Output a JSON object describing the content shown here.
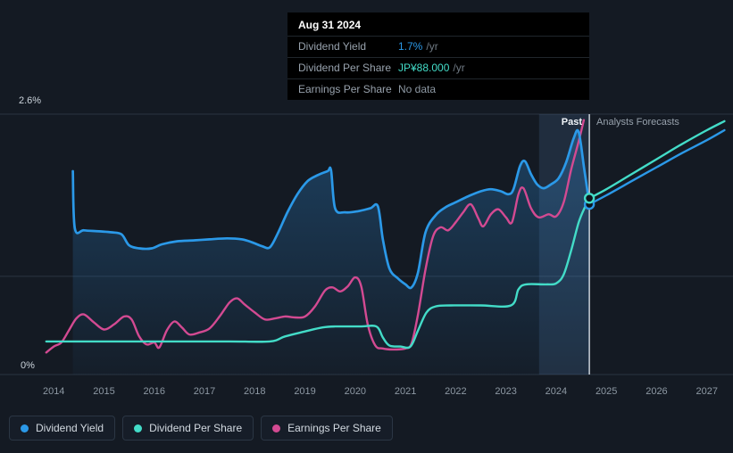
{
  "colors": {
    "background": "#141a23",
    "dividend_yield": "#2b99e8",
    "dividend_per_share": "#43dcc8",
    "earnings_per_share": "#d34a92",
    "area_fill": "#2b7fc4",
    "band": "#6aa6e0",
    "grid": "#2a3441",
    "divider": "#e2e9f0",
    "marker_fill": "#0e141d",
    "muted": "#8d98a3"
  },
  "tooltip": {
    "title": "Aug 31 2024",
    "rows": [
      {
        "label": "Dividend Yield",
        "value": "1.7%",
        "suffix": "/yr",
        "color_key": "dividend_yield"
      },
      {
        "label": "Dividend Per Share",
        "value": "JP¥88.000",
        "suffix": "/yr",
        "color_key": "dividend_per_share"
      },
      {
        "label": "Earnings Per Share",
        "value": "No data",
        "suffix": "",
        "color_key": "muted"
      }
    ]
  },
  "annotations": {
    "past_label": "Past",
    "forecast_label": "Analysts Forecasts"
  },
  "axis": {
    "y_top_label": "2.6%",
    "y_bottom_label": "0%"
  },
  "legend": [
    {
      "key": "dividend-yield",
      "label": "Dividend Yield",
      "color_key": "dividend_yield"
    },
    {
      "key": "dividend-per-share",
      "label": "Dividend Per Share",
      "color_key": "dividend_per_share"
    },
    {
      "key": "earnings-per-share",
      "label": "Earnings Per Share",
      "color_key": "earnings_per_share"
    }
  ],
  "chart_data": {
    "type": "line",
    "x_ticks": [
      2014,
      2015,
      2016,
      2017,
      2018,
      2019,
      2020,
      2021,
      2022,
      2023,
      2024,
      2025,
      2026,
      2027
    ],
    "xlim": [
      2012.93,
      2027.52
    ],
    "ylim": [
      0,
      2.6
    ],
    "y_unit": "%",
    "y_axis_tick_labels": [
      "0%",
      "2.6%"
    ],
    "gridlines_pct": [
      2.6,
      0.98,
      0
    ],
    "divider_x": 2024.66,
    "highlight_band": [
      2023.66,
      2024.66
    ],
    "legend_position": "bottom-left",
    "series": [
      {
        "key": "dividend-yield",
        "name": "Dividend Yield",
        "color_key": "dividend_yield",
        "area": true,
        "marker": [
          2024.66,
          1.7
        ],
        "past": [
          [
            2014.38,
            2.03
          ],
          [
            2014.42,
            1.46
          ],
          [
            2014.6,
            1.44
          ],
          [
            2014.9,
            1.43
          ],
          [
            2015.15,
            1.42
          ],
          [
            2015.35,
            1.4
          ],
          [
            2015.5,
            1.29
          ],
          [
            2015.7,
            1.26
          ],
          [
            2015.95,
            1.26
          ],
          [
            2016.15,
            1.3
          ],
          [
            2016.45,
            1.33
          ],
          [
            2016.8,
            1.34
          ],
          [
            2017.1,
            1.35
          ],
          [
            2017.45,
            1.36
          ],
          [
            2017.75,
            1.35
          ],
          [
            2017.95,
            1.32
          ],
          [
            2018.15,
            1.28
          ],
          [
            2018.3,
            1.27
          ],
          [
            2018.45,
            1.4
          ],
          [
            2018.65,
            1.62
          ],
          [
            2018.85,
            1.8
          ],
          [
            2019.05,
            1.93
          ],
          [
            2019.25,
            1.99
          ],
          [
            2019.45,
            2.03
          ],
          [
            2019.52,
            2.04
          ],
          [
            2019.6,
            1.66
          ],
          [
            2019.8,
            1.62
          ],
          [
            2020.05,
            1.63
          ],
          [
            2020.3,
            1.66
          ],
          [
            2020.45,
            1.68
          ],
          [
            2020.55,
            1.35
          ],
          [
            2020.68,
            1.06
          ],
          [
            2020.85,
            0.96
          ],
          [
            2021.0,
            0.9
          ],
          [
            2021.12,
            0.87
          ],
          [
            2021.25,
            1.02
          ],
          [
            2021.4,
            1.42
          ],
          [
            2021.6,
            1.59
          ],
          [
            2021.8,
            1.67
          ],
          [
            2022.0,
            1.72
          ],
          [
            2022.25,
            1.78
          ],
          [
            2022.5,
            1.83
          ],
          [
            2022.7,
            1.85
          ],
          [
            2022.9,
            1.83
          ],
          [
            2023.05,
            1.8
          ],
          [
            2023.15,
            1.85
          ],
          [
            2023.28,
            2.08
          ],
          [
            2023.38,
            2.13
          ],
          [
            2023.5,
            2.0
          ],
          [
            2023.62,
            1.9
          ],
          [
            2023.75,
            1.86
          ],
          [
            2023.9,
            1.9
          ],
          [
            2024.05,
            1.96
          ],
          [
            2024.2,
            2.12
          ],
          [
            2024.35,
            2.36
          ],
          [
            2024.45,
            2.42
          ],
          [
            2024.56,
            2.05
          ],
          [
            2024.66,
            1.7
          ]
        ],
        "forecast": [
          [
            2024.66,
            1.7
          ],
          [
            2025.0,
            1.79
          ],
          [
            2025.5,
            1.93
          ],
          [
            2026.0,
            2.07
          ],
          [
            2026.5,
            2.21
          ],
          [
            2027.0,
            2.34
          ],
          [
            2027.35,
            2.44
          ]
        ]
      },
      {
        "key": "dividend-per-share",
        "name": "Dividend Per Share",
        "color_key": "dividend_per_share",
        "area": false,
        "marker": [
          2024.66,
          1.76
        ],
        "past": [
          [
            2013.85,
            0.33
          ],
          [
            2014.5,
            0.33
          ],
          [
            2015.5,
            0.33
          ],
          [
            2016.5,
            0.33
          ],
          [
            2017.5,
            0.33
          ],
          [
            2018.3,
            0.33
          ],
          [
            2018.6,
            0.38
          ],
          [
            2019.0,
            0.43
          ],
          [
            2019.35,
            0.47
          ],
          [
            2019.6,
            0.48
          ],
          [
            2020.1,
            0.48
          ],
          [
            2020.42,
            0.48
          ],
          [
            2020.55,
            0.37
          ],
          [
            2020.68,
            0.29
          ],
          [
            2020.9,
            0.28
          ],
          [
            2021.1,
            0.28
          ],
          [
            2021.25,
            0.44
          ],
          [
            2021.42,
            0.62
          ],
          [
            2021.6,
            0.68
          ],
          [
            2021.9,
            0.69
          ],
          [
            2022.5,
            0.69
          ],
          [
            2023.1,
            0.69
          ],
          [
            2023.25,
            0.85
          ],
          [
            2023.4,
            0.9
          ],
          [
            2023.8,
            0.9
          ],
          [
            2024.0,
            0.91
          ],
          [
            2024.15,
            1.0
          ],
          [
            2024.3,
            1.24
          ],
          [
            2024.45,
            1.52
          ],
          [
            2024.58,
            1.68
          ],
          [
            2024.66,
            1.76
          ]
        ],
        "forecast": [
          [
            2024.66,
            1.76
          ],
          [
            2025.0,
            1.85
          ],
          [
            2025.5,
            2.0
          ],
          [
            2026.0,
            2.15
          ],
          [
            2026.5,
            2.3
          ],
          [
            2027.0,
            2.44
          ],
          [
            2027.35,
            2.53
          ]
        ]
      },
      {
        "key": "earnings-per-share",
        "name": "Earnings Per Share",
        "color_key": "earnings_per_share",
        "area": false,
        "past": [
          [
            2013.85,
            0.22
          ],
          [
            2014.0,
            0.28
          ],
          [
            2014.15,
            0.32
          ],
          [
            2014.3,
            0.44
          ],
          [
            2014.45,
            0.56
          ],
          [
            2014.6,
            0.6
          ],
          [
            2014.8,
            0.52
          ],
          [
            2015.0,
            0.45
          ],
          [
            2015.2,
            0.5
          ],
          [
            2015.4,
            0.58
          ],
          [
            2015.55,
            0.55
          ],
          [
            2015.7,
            0.38
          ],
          [
            2015.85,
            0.3
          ],
          [
            2016.0,
            0.32
          ],
          [
            2016.1,
            0.27
          ],
          [
            2016.25,
            0.44
          ],
          [
            2016.4,
            0.53
          ],
          [
            2016.55,
            0.47
          ],
          [
            2016.7,
            0.4
          ],
          [
            2016.9,
            0.42
          ],
          [
            2017.1,
            0.46
          ],
          [
            2017.3,
            0.58
          ],
          [
            2017.5,
            0.72
          ],
          [
            2017.65,
            0.76
          ],
          [
            2017.8,
            0.7
          ],
          [
            2018.0,
            0.62
          ],
          [
            2018.2,
            0.55
          ],
          [
            2018.4,
            0.56
          ],
          [
            2018.6,
            0.58
          ],
          [
            2018.8,
            0.57
          ],
          [
            2019.0,
            0.58
          ],
          [
            2019.2,
            0.68
          ],
          [
            2019.4,
            0.84
          ],
          [
            2019.55,
            0.87
          ],
          [
            2019.7,
            0.83
          ],
          [
            2019.85,
            0.88
          ],
          [
            2020.0,
            0.97
          ],
          [
            2020.12,
            0.88
          ],
          [
            2020.25,
            0.5
          ],
          [
            2020.4,
            0.29
          ],
          [
            2020.55,
            0.26
          ],
          [
            2020.75,
            0.25
          ],
          [
            2021.0,
            0.26
          ],
          [
            2021.12,
            0.31
          ],
          [
            2021.25,
            0.6
          ],
          [
            2021.4,
            1.05
          ],
          [
            2021.55,
            1.38
          ],
          [
            2021.7,
            1.47
          ],
          [
            2021.85,
            1.44
          ],
          [
            2022.0,
            1.52
          ],
          [
            2022.15,
            1.62
          ],
          [
            2022.3,
            1.7
          ],
          [
            2022.45,
            1.56
          ],
          [
            2022.55,
            1.48
          ],
          [
            2022.7,
            1.6
          ],
          [
            2022.85,
            1.65
          ],
          [
            2023.0,
            1.57
          ],
          [
            2023.12,
            1.52
          ],
          [
            2023.25,
            1.8
          ],
          [
            2023.35,
            1.86
          ],
          [
            2023.5,
            1.66
          ],
          [
            2023.65,
            1.57
          ],
          [
            2023.85,
            1.6
          ],
          [
            2024.0,
            1.58
          ],
          [
            2024.15,
            1.72
          ],
          [
            2024.3,
            2.05
          ],
          [
            2024.45,
            2.33
          ],
          [
            2024.55,
            2.54
          ]
        ]
      }
    ]
  }
}
